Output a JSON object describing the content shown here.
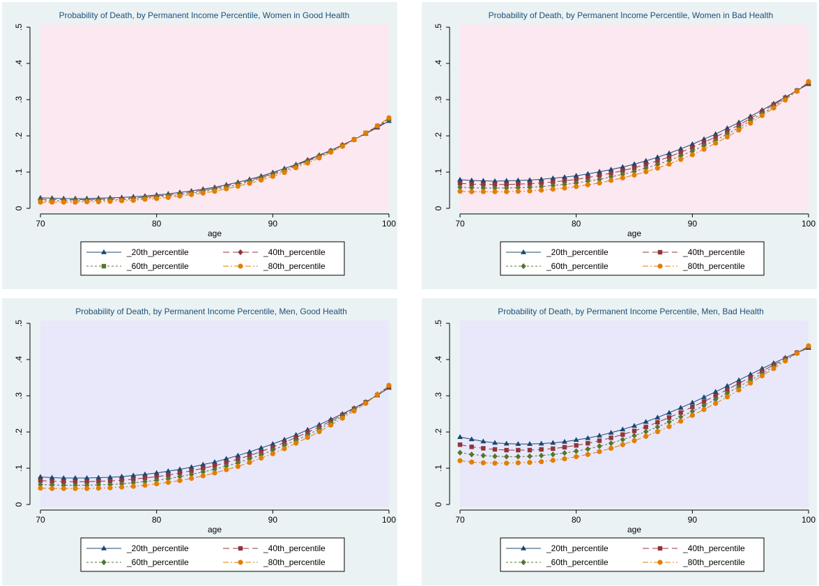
{
  "chart_data": [
    {
      "type": "line",
      "title": "Probability of Death, by Permanent Income Percentile, Women in Good Health",
      "xlabel": "age",
      "ylabel": "",
      "xlim": [
        70,
        100
      ],
      "ylim": [
        0,
        0.5
      ],
      "x_ticks": [
        "70",
        "80",
        "90",
        "100"
      ],
      "y_ticks": [
        "0",
        ".1",
        ".2",
        ".3",
        ".4",
        ".5"
      ],
      "plot_background": "#fce8f1",
      "grid": false,
      "legend_position": "bottom",
      "marker_order": [
        "triangle",
        "diamond",
        "square",
        "circle"
      ],
      "x": [
        70,
        71,
        72,
        73,
        74,
        75,
        76,
        77,
        78,
        79,
        80,
        81,
        82,
        83,
        84,
        85,
        86,
        87,
        88,
        89,
        90,
        91,
        92,
        93,
        94,
        95,
        96,
        97,
        98,
        99,
        100
      ],
      "series": [
        {
          "name": "_20th_percentile",
          "color": "#1a476f",
          "values": [
            0.029,
            0.028,
            0.027,
            0.027,
            0.027,
            0.028,
            0.029,
            0.03,
            0.032,
            0.034,
            0.037,
            0.04,
            0.044,
            0.048,
            0.053,
            0.058,
            0.065,
            0.072,
            0.08,
            0.089,
            0.099,
            0.11,
            0.121,
            0.134,
            0.147,
            0.16,
            0.175,
            0.19,
            0.206,
            0.223,
            0.241
          ]
        },
        {
          "name": "_40th_percentile",
          "color": "#90353b",
          "values": [
            0.025,
            0.024,
            0.024,
            0.024,
            0.024,
            0.025,
            0.026,
            0.027,
            0.029,
            0.031,
            0.034,
            0.037,
            0.041,
            0.045,
            0.05,
            0.055,
            0.062,
            0.069,
            0.077,
            0.086,
            0.096,
            0.107,
            0.119,
            0.132,
            0.145,
            0.159,
            0.175,
            0.19,
            0.207,
            0.225,
            0.244
          ]
        },
        {
          "name": "_60th_percentile",
          "color": "#55752f",
          "values": [
            0.021,
            0.021,
            0.021,
            0.021,
            0.021,
            0.022,
            0.023,
            0.024,
            0.026,
            0.028,
            0.031,
            0.034,
            0.038,
            0.042,
            0.046,
            0.052,
            0.058,
            0.066,
            0.074,
            0.083,
            0.093,
            0.104,
            0.116,
            0.129,
            0.143,
            0.158,
            0.173,
            0.19,
            0.208,
            0.227,
            0.247
          ]
        },
        {
          "name": "_80th_percentile",
          "color": "#e37e00",
          "values": [
            0.017,
            0.017,
            0.017,
            0.017,
            0.018,
            0.018,
            0.019,
            0.021,
            0.022,
            0.025,
            0.027,
            0.03,
            0.034,
            0.038,
            0.042,
            0.047,
            0.054,
            0.061,
            0.069,
            0.078,
            0.088,
            0.099,
            0.112,
            0.125,
            0.139,
            0.155,
            0.171,
            0.189,
            0.208,
            0.228,
            0.25
          ]
        }
      ]
    },
    {
      "type": "line",
      "title": "Probability of Death, by Permanent Income Percentile, Women in Bad Health",
      "xlabel": "age",
      "ylabel": "",
      "xlim": [
        70,
        100
      ],
      "ylim": [
        0,
        0.5
      ],
      "x_ticks": [
        "70",
        "80",
        "90",
        "100"
      ],
      "y_ticks": [
        "0",
        ".1",
        ".2",
        ".3",
        ".4",
        ".5"
      ],
      "plot_background": "#fce8f1",
      "grid": false,
      "legend_position": "bottom",
      "marker_order": [
        "triangle",
        "square",
        "diamond",
        "circle"
      ],
      "x": [
        70,
        71,
        72,
        73,
        74,
        75,
        76,
        77,
        78,
        79,
        80,
        81,
        82,
        83,
        84,
        85,
        86,
        87,
        88,
        89,
        90,
        91,
        92,
        93,
        94,
        95,
        96,
        97,
        98,
        99,
        100
      ],
      "series": [
        {
          "name": "_20th_percentile",
          "color": "#1a476f",
          "values": [
            0.079,
            0.077,
            0.076,
            0.075,
            0.076,
            0.077,
            0.078,
            0.08,
            0.083,
            0.086,
            0.09,
            0.095,
            0.101,
            0.107,
            0.114,
            0.122,
            0.131,
            0.141,
            0.152,
            0.164,
            0.177,
            0.191,
            0.205,
            0.221,
            0.237,
            0.254,
            0.271,
            0.289,
            0.307,
            0.325,
            0.343
          ]
        },
        {
          "name": "_40th_percentile",
          "color": "#90353b",
          "values": [
            0.069,
            0.067,
            0.066,
            0.066,
            0.066,
            0.067,
            0.068,
            0.07,
            0.073,
            0.076,
            0.08,
            0.085,
            0.091,
            0.097,
            0.104,
            0.112,
            0.121,
            0.131,
            0.142,
            0.155,
            0.168,
            0.182,
            0.197,
            0.213,
            0.23,
            0.248,
            0.267,
            0.286,
            0.305,
            0.325,
            0.346
          ]
        },
        {
          "name": "_60th_percentile",
          "color": "#55752f",
          "values": [
            0.058,
            0.057,
            0.056,
            0.056,
            0.056,
            0.057,
            0.058,
            0.06,
            0.063,
            0.066,
            0.07,
            0.075,
            0.08,
            0.087,
            0.094,
            0.102,
            0.111,
            0.121,
            0.132,
            0.145,
            0.158,
            0.173,
            0.188,
            0.205,
            0.223,
            0.242,
            0.261,
            0.281,
            0.303,
            0.325,
            0.348
          ]
        },
        {
          "name": "_80th_percentile",
          "color": "#e37e00",
          "values": [
            0.047,
            0.046,
            0.046,
            0.046,
            0.046,
            0.047,
            0.048,
            0.05,
            0.053,
            0.056,
            0.06,
            0.065,
            0.07,
            0.077,
            0.084,
            0.092,
            0.101,
            0.111,
            0.122,
            0.135,
            0.148,
            0.163,
            0.18,
            0.197,
            0.216,
            0.235,
            0.256,
            0.277,
            0.299,
            0.323,
            0.35
          ]
        }
      ]
    },
    {
      "type": "line",
      "title": "Probability of Death, by Permanent Income Percentile, Men, Good Health",
      "xlabel": "age",
      "ylabel": "",
      "xlim": [
        70,
        100
      ],
      "ylim": [
        0,
        0.5
      ],
      "x_ticks": [
        "70",
        "80",
        "90",
        "100"
      ],
      "y_ticks": [
        "0",
        ".1",
        ".2",
        ".3",
        ".4",
        ".5"
      ],
      "plot_background": "#e8e8fa",
      "grid": false,
      "legend_position": "bottom",
      "marker_order": [
        "triangle",
        "square",
        "diamond",
        "circle"
      ],
      "x": [
        70,
        71,
        72,
        73,
        74,
        75,
        76,
        77,
        78,
        79,
        80,
        81,
        82,
        83,
        84,
        85,
        86,
        87,
        88,
        89,
        90,
        91,
        92,
        93,
        94,
        95,
        96,
        97,
        98,
        99,
        100
      ],
      "series": [
        {
          "name": "_20th_percentile",
          "color": "#1a476f",
          "values": [
            0.076,
            0.074,
            0.073,
            0.073,
            0.073,
            0.074,
            0.075,
            0.077,
            0.08,
            0.083,
            0.087,
            0.092,
            0.097,
            0.103,
            0.11,
            0.117,
            0.126,
            0.135,
            0.145,
            0.156,
            0.167,
            0.179,
            0.192,
            0.206,
            0.22,
            0.235,
            0.25,
            0.266,
            0.283,
            0.301,
            0.322
          ]
        },
        {
          "name": "_40th_percentile",
          "color": "#90353b",
          "values": [
            0.066,
            0.064,
            0.063,
            0.063,
            0.063,
            0.064,
            0.065,
            0.067,
            0.07,
            0.073,
            0.077,
            0.081,
            0.087,
            0.093,
            0.1,
            0.107,
            0.116,
            0.125,
            0.135,
            0.146,
            0.158,
            0.171,
            0.185,
            0.199,
            0.214,
            0.23,
            0.247,
            0.264,
            0.282,
            0.302,
            0.324
          ]
        },
        {
          "name": "_60th_percentile",
          "color": "#55752f",
          "values": [
            0.055,
            0.054,
            0.053,
            0.053,
            0.053,
            0.054,
            0.055,
            0.057,
            0.06,
            0.063,
            0.067,
            0.071,
            0.077,
            0.083,
            0.09,
            0.097,
            0.106,
            0.115,
            0.126,
            0.137,
            0.15,
            0.163,
            0.177,
            0.192,
            0.208,
            0.225,
            0.243,
            0.262,
            0.282,
            0.304,
            0.327
          ]
        },
        {
          "name": "_80th_percentile",
          "color": "#e37e00",
          "values": [
            0.045,
            0.044,
            0.044,
            0.044,
            0.044,
            0.045,
            0.046,
            0.048,
            0.05,
            0.053,
            0.057,
            0.061,
            0.066,
            0.072,
            0.079,
            0.087,
            0.096,
            0.105,
            0.116,
            0.128,
            0.14,
            0.154,
            0.169,
            0.185,
            0.201,
            0.219,
            0.238,
            0.258,
            0.279,
            0.303,
            0.329
          ]
        }
      ]
    },
    {
      "type": "line",
      "title": "Probability of Death, by Permanent Income Percentile, Men, Bad Health",
      "xlabel": "age",
      "ylabel": "",
      "xlim": [
        70,
        100
      ],
      "ylim": [
        0,
        0.5
      ],
      "x_ticks": [
        "70",
        "80",
        "90",
        "100"
      ],
      "y_ticks": [
        "0",
        ".1",
        ".2",
        ".3",
        ".4",
        ".5"
      ],
      "plot_background": "#e8e8fa",
      "grid": false,
      "legend_position": "bottom",
      "marker_order": [
        "triangle",
        "square",
        "diamond",
        "circle"
      ],
      "x": [
        70,
        71,
        72,
        73,
        74,
        75,
        76,
        77,
        78,
        79,
        80,
        81,
        82,
        83,
        84,
        85,
        86,
        87,
        88,
        89,
        90,
        91,
        92,
        93,
        94,
        95,
        96,
        97,
        98,
        99,
        100
      ],
      "series": [
        {
          "name": "_20th_percentile",
          "color": "#1a476f",
          "values": [
            0.186,
            0.18,
            0.174,
            0.17,
            0.168,
            0.167,
            0.167,
            0.168,
            0.17,
            0.173,
            0.178,
            0.183,
            0.19,
            0.198,
            0.207,
            0.217,
            0.228,
            0.24,
            0.253,
            0.267,
            0.281,
            0.296,
            0.311,
            0.327,
            0.343,
            0.359,
            0.375,
            0.39,
            0.405,
            0.419,
            0.432
          ]
        },
        {
          "name": "_40th_percentile",
          "color": "#90353b",
          "values": [
            0.165,
            0.159,
            0.155,
            0.152,
            0.15,
            0.15,
            0.15,
            0.152,
            0.154,
            0.158,
            0.163,
            0.169,
            0.176,
            0.184,
            0.193,
            0.203,
            0.214,
            0.227,
            0.24,
            0.254,
            0.269,
            0.284,
            0.3,
            0.317,
            0.334,
            0.351,
            0.368,
            0.385,
            0.402,
            0.419,
            0.435
          ]
        },
        {
          "name": "_60th_percentile",
          "color": "#55752f",
          "values": [
            0.143,
            0.138,
            0.135,
            0.133,
            0.132,
            0.132,
            0.133,
            0.135,
            0.138,
            0.142,
            0.147,
            0.153,
            0.161,
            0.169,
            0.179,
            0.19,
            0.201,
            0.214,
            0.228,
            0.242,
            0.257,
            0.273,
            0.29,
            0.307,
            0.325,
            0.343,
            0.361,
            0.38,
            0.399,
            0.418,
            0.436
          ]
        },
        {
          "name": "_80th_percentile",
          "color": "#e37e00",
          "values": [
            0.121,
            0.117,
            0.115,
            0.114,
            0.114,
            0.115,
            0.116,
            0.118,
            0.122,
            0.126,
            0.132,
            0.138,
            0.146,
            0.155,
            0.165,
            0.176,
            0.188,
            0.201,
            0.215,
            0.23,
            0.246,
            0.262,
            0.279,
            0.297,
            0.316,
            0.335,
            0.355,
            0.375,
            0.396,
            0.417,
            0.438
          ]
        }
      ]
    }
  ]
}
